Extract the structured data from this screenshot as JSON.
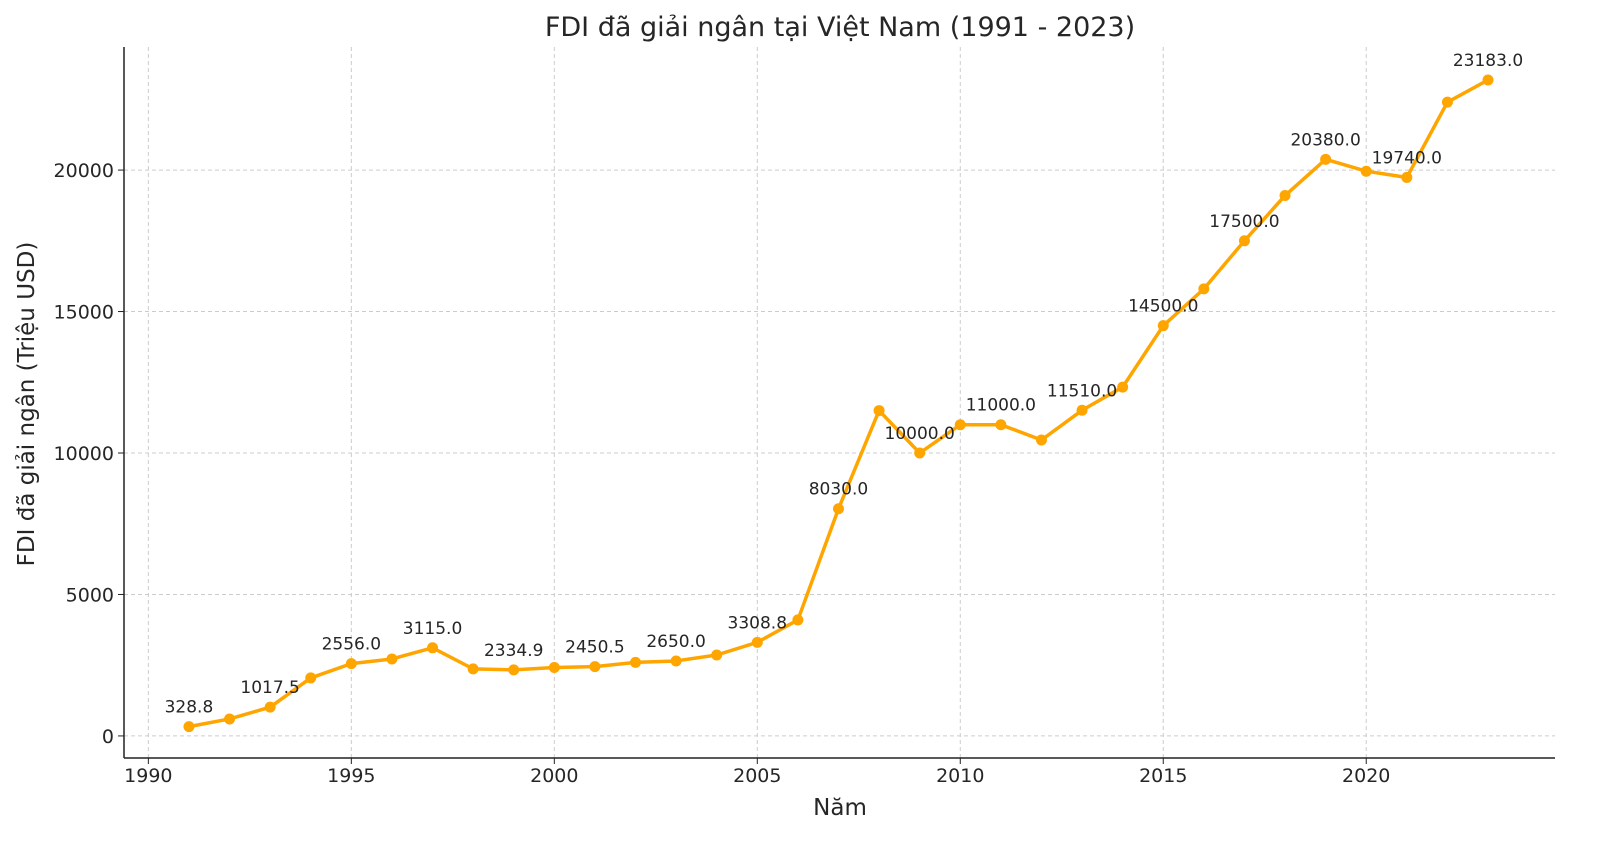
{
  "chart_data": {
    "type": "line",
    "title": "FDI đã giải ngân tại Việt Nam (1991 - 2023)",
    "xlabel": "Năm",
    "ylabel": "FDI đã giải ngân (Triệu USD)",
    "xlim": [
      1989.4,
      2024.65
    ],
    "ylim": [
      -780,
      24350
    ],
    "xticks": [
      1990,
      1995,
      2000,
      2005,
      2010,
      2015,
      2020
    ],
    "yticks": [
      0,
      5000,
      10000,
      15000,
      20000
    ],
    "grid": true,
    "color": "#FFA500",
    "x": [
      1991,
      1992,
      1993,
      1994,
      1995,
      1996,
      1997,
      1998,
      1999,
      2000,
      2001,
      2002,
      2003,
      2004,
      2005,
      2006,
      2007,
      2008,
      2009,
      2010,
      2011,
      2012,
      2013,
      2014,
      2015,
      2016,
      2017,
      2018,
      2019,
      2020,
      2021,
      2022,
      2023
    ],
    "y": [
      328.8,
      600,
      1017.5,
      2050,
      2556.0,
      2720,
      3115.0,
      2370,
      2334.9,
      2420,
      2450.5,
      2600,
      2650.0,
      2860,
      3308.8,
      4100,
      8030.0,
      11500,
      10000.0,
      11000.0,
      11000,
      10460,
      11510.0,
      12330,
      14500.0,
      15800,
      17500.0,
      19100,
      20380.0,
      19960,
      19740.0,
      22400,
      23183.0
    ],
    "data_labels": [
      {
        "x": 1991,
        "text": "328.8"
      },
      {
        "x": 1993,
        "text": "1017.5"
      },
      {
        "x": 1995,
        "text": "2556.0"
      },
      {
        "x": 1997,
        "text": "3115.0"
      },
      {
        "x": 1999,
        "text": "2334.9"
      },
      {
        "x": 2001,
        "text": "2450.5"
      },
      {
        "x": 2003,
        "text": "2650.0"
      },
      {
        "x": 2005,
        "text": "3308.8"
      },
      {
        "x": 2007,
        "text": "8030.0"
      },
      {
        "x": 2009,
        "text": "10000.0"
      },
      {
        "x": 2011,
        "text": "11000.0"
      },
      {
        "x": 2013,
        "text": "11510.0"
      },
      {
        "x": 2015,
        "text": "14500.0"
      },
      {
        "x": 2017,
        "text": "17500.0"
      },
      {
        "x": 2019,
        "text": "20380.0"
      },
      {
        "x": 2021,
        "text": "19740.0"
      },
      {
        "x": 2023,
        "text": "23183.0"
      }
    ]
  }
}
